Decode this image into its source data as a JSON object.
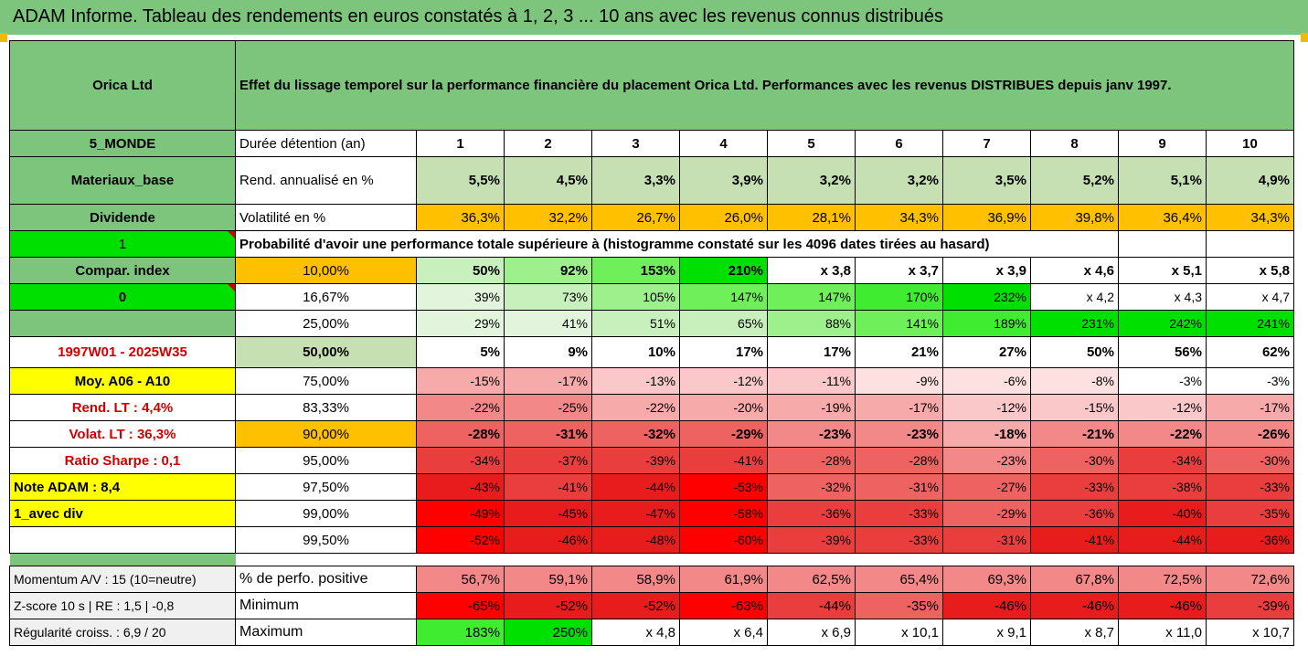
{
  "page_title": "ADAM Informe. Tableau des rendements en euros constatés à 1, 2, 3 ... 10 ans avec les revenus connus distribués",
  "company": "Orica Ltd",
  "description": "Effet du lissage temporel sur la performance financière du placement Orica Ltd. Performances avec les revenus DISTRIBUES depuis janv 1997.",
  "colors": {
    "header_green": "#7dc57d",
    "light_green": "#c6e0b4",
    "bright_green": "#00e000",
    "orange": "#ffc000",
    "yellow": "#ffff00",
    "white": "#ffffff"
  },
  "left": {
    "zone": "5_MONDE",
    "sector": "Materiaux_base",
    "type": "Dividende",
    "one": "1",
    "compar": "Compar. index",
    "zero": "0",
    "period": "1997W01 - 2025W35",
    "moy": "Moy. A06 - A10",
    "rend_lt": "Rend. LT :   4,4%",
    "volat_lt": "Volat. LT :   36,3%",
    "sharpe": "Ratio Sharpe :   0,1",
    "note": "Note ADAM : 8,4",
    "avec_div": "1_avec div",
    "momentum": "Momentum A/V : 15 (10=neutre)",
    "zscore": "Z-score 10 s  | RE : 1,5 | -0,8",
    "regularite": "Régularité croiss. : 6,9 / 20"
  },
  "labels": {
    "duree": "Durée détention (an)",
    "rend": "Rend. annualisé en %",
    "volat": "Volatilité en %",
    "proba": "Probabilité d'avoir une performance totale supérieure à (histogramme constaté sur les 4096 dates tirées au hasard)",
    "perfpos": "% de perfo. positive",
    "minimum": "Minimum",
    "maximum": "Maximum"
  },
  "years": [
    "1",
    "2",
    "3",
    "4",
    "5",
    "6",
    "7",
    "8",
    "9",
    "10"
  ],
  "rend": [
    "5,5%",
    "4,5%",
    "3,3%",
    "3,9%",
    "3,2%",
    "3,2%",
    "3,5%",
    "5,2%",
    "5,1%",
    "4,9%"
  ],
  "volat": [
    "36,3%",
    "32,2%",
    "26,7%",
    "26,0%",
    "28,1%",
    "34,3%",
    "36,9%",
    "39,8%",
    "36,4%",
    "34,3%"
  ],
  "prob_rows": [
    {
      "pct": "10,00%",
      "values": [
        "50%",
        "92%",
        "153%",
        "210%",
        "x 3,8",
        "x 3,7",
        "x 3,9",
        "x 4,6",
        "x 5,1",
        "x 5,8"
      ]
    },
    {
      "pct": "16,67%",
      "values": [
        "39%",
        "73%",
        "105%",
        "147%",
        "147%",
        "170%",
        "232%",
        "x 4,2",
        "x 4,3",
        "x 4,7"
      ]
    },
    {
      "pct": "25,00%",
      "values": [
        "29%",
        "41%",
        "51%",
        "65%",
        "88%",
        "141%",
        "189%",
        "231%",
        "242%",
        "241%"
      ]
    },
    {
      "pct": "50,00%",
      "values": [
        "5%",
        "9%",
        "10%",
        "17%",
        "17%",
        "21%",
        "27%",
        "50%",
        "56%",
        "62%"
      ]
    },
    {
      "pct": "75,00%",
      "values": [
        "-15%",
        "-17%",
        "-13%",
        "-12%",
        "-11%",
        "-9%",
        "-6%",
        "-8%",
        "-3%",
        "-3%"
      ]
    },
    {
      "pct": "83,33%",
      "values": [
        "-22%",
        "-25%",
        "-22%",
        "-20%",
        "-19%",
        "-17%",
        "-12%",
        "-15%",
        "-12%",
        "-17%"
      ]
    },
    {
      "pct": "90,00%",
      "values": [
        "-28%",
        "-31%",
        "-32%",
        "-29%",
        "-23%",
        "-23%",
        "-18%",
        "-21%",
        "-22%",
        "-26%"
      ]
    },
    {
      "pct": "95,00%",
      "values": [
        "-34%",
        "-37%",
        "-39%",
        "-41%",
        "-28%",
        "-28%",
        "-23%",
        "-30%",
        "-34%",
        "-30%"
      ]
    },
    {
      "pct": "97,50%",
      "values": [
        "-43%",
        "-41%",
        "-44%",
        "-53%",
        "-32%",
        "-31%",
        "-27%",
        "-33%",
        "-38%",
        "-33%"
      ]
    },
    {
      "pct": "99,00%",
      "values": [
        "-49%",
        "-45%",
        "-47%",
        "-58%",
        "-36%",
        "-33%",
        "-29%",
        "-36%",
        "-40%",
        "-35%"
      ]
    },
    {
      "pct": "99,50%",
      "values": [
        "-52%",
        "-46%",
        "-48%",
        "-60%",
        "-39%",
        "-33%",
        "-31%",
        "-41%",
        "-44%",
        "-36%"
      ]
    }
  ],
  "perfpos": [
    "56,7%",
    "59,1%",
    "58,9%",
    "61,9%",
    "62,5%",
    "65,4%",
    "69,3%",
    "67,8%",
    "72,5%",
    "72,6%"
  ],
  "minimum": [
    "-65%",
    "-52%",
    "-52%",
    "-63%",
    "-44%",
    "-35%",
    "-46%",
    "-46%",
    "-46%",
    "-39%"
  ],
  "maximum": [
    "183%",
    "250%",
    "x 4,8",
    "x 6,4",
    "x 6,9",
    "x 10,1",
    "x 9,1",
    "x 8,7",
    "x 11,0",
    "x 10,7"
  ]
}
